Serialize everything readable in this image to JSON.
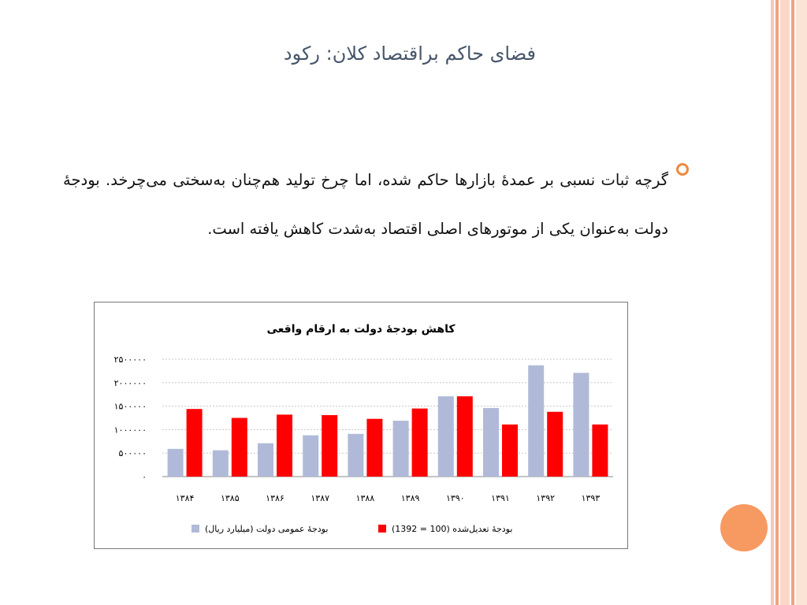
{
  "slide": {
    "title": "فضای حاکم براقتصاد کلان: رکود",
    "bullet_text": "گرچه ثبات نسبی بر عمدهٔ بازارها حاکم شده، اما چرخ تولید هم‌چنان به‌سختی می‌چرخد. بودجهٔ دولت به‌عنوان یکی از موتورهای اصلی اقتصاد به‌شدت کاهش یافته است."
  },
  "chart_data": {
    "type": "bar",
    "title": "کاهش بودجهٔ دولت به ارقام واقعی",
    "categories": [
      "۱۳۸۴",
      "۱۳۸۵",
      "۱۳۸۶",
      "۱۳۸۷",
      "۱۳۸۸",
      "۱۳۸۹",
      "۱۳۹۰",
      "۱۳۹۱",
      "۱۳۹۲",
      "۱۳۹۳"
    ],
    "series": [
      {
        "name": "بودجهٔ عمومی دولت (میلیارد ریال)",
        "color": "#b0bad8",
        "values": [
          590000,
          560000,
          710000,
          880000,
          910000,
          1190000,
          1710000,
          1460000,
          2370000,
          2210000
        ]
      },
      {
        "name": "بودجهٔ تعدیل‌شده (100 = 1392)",
        "color": "#ff0000",
        "values": [
          1440000,
          1250000,
          1320000,
          1310000,
          1230000,
          1450000,
          1710000,
          1110000,
          1380000,
          1110000
        ]
      }
    ],
    "ylim": [
      0,
      2500000
    ],
    "yticks": [
      0,
      500000,
      1000000,
      1500000,
      2000000,
      2500000
    ],
    "ytick_labels": [
      "۰",
      "۵۰۰۰۰۰",
      "۱۰۰۰۰۰۰",
      "۱۵۰۰۰۰۰",
      "۲۰۰۰۰۰۰",
      "۲۵۰۰۰۰۰"
    ],
    "grid": true,
    "legend": "bottom"
  }
}
